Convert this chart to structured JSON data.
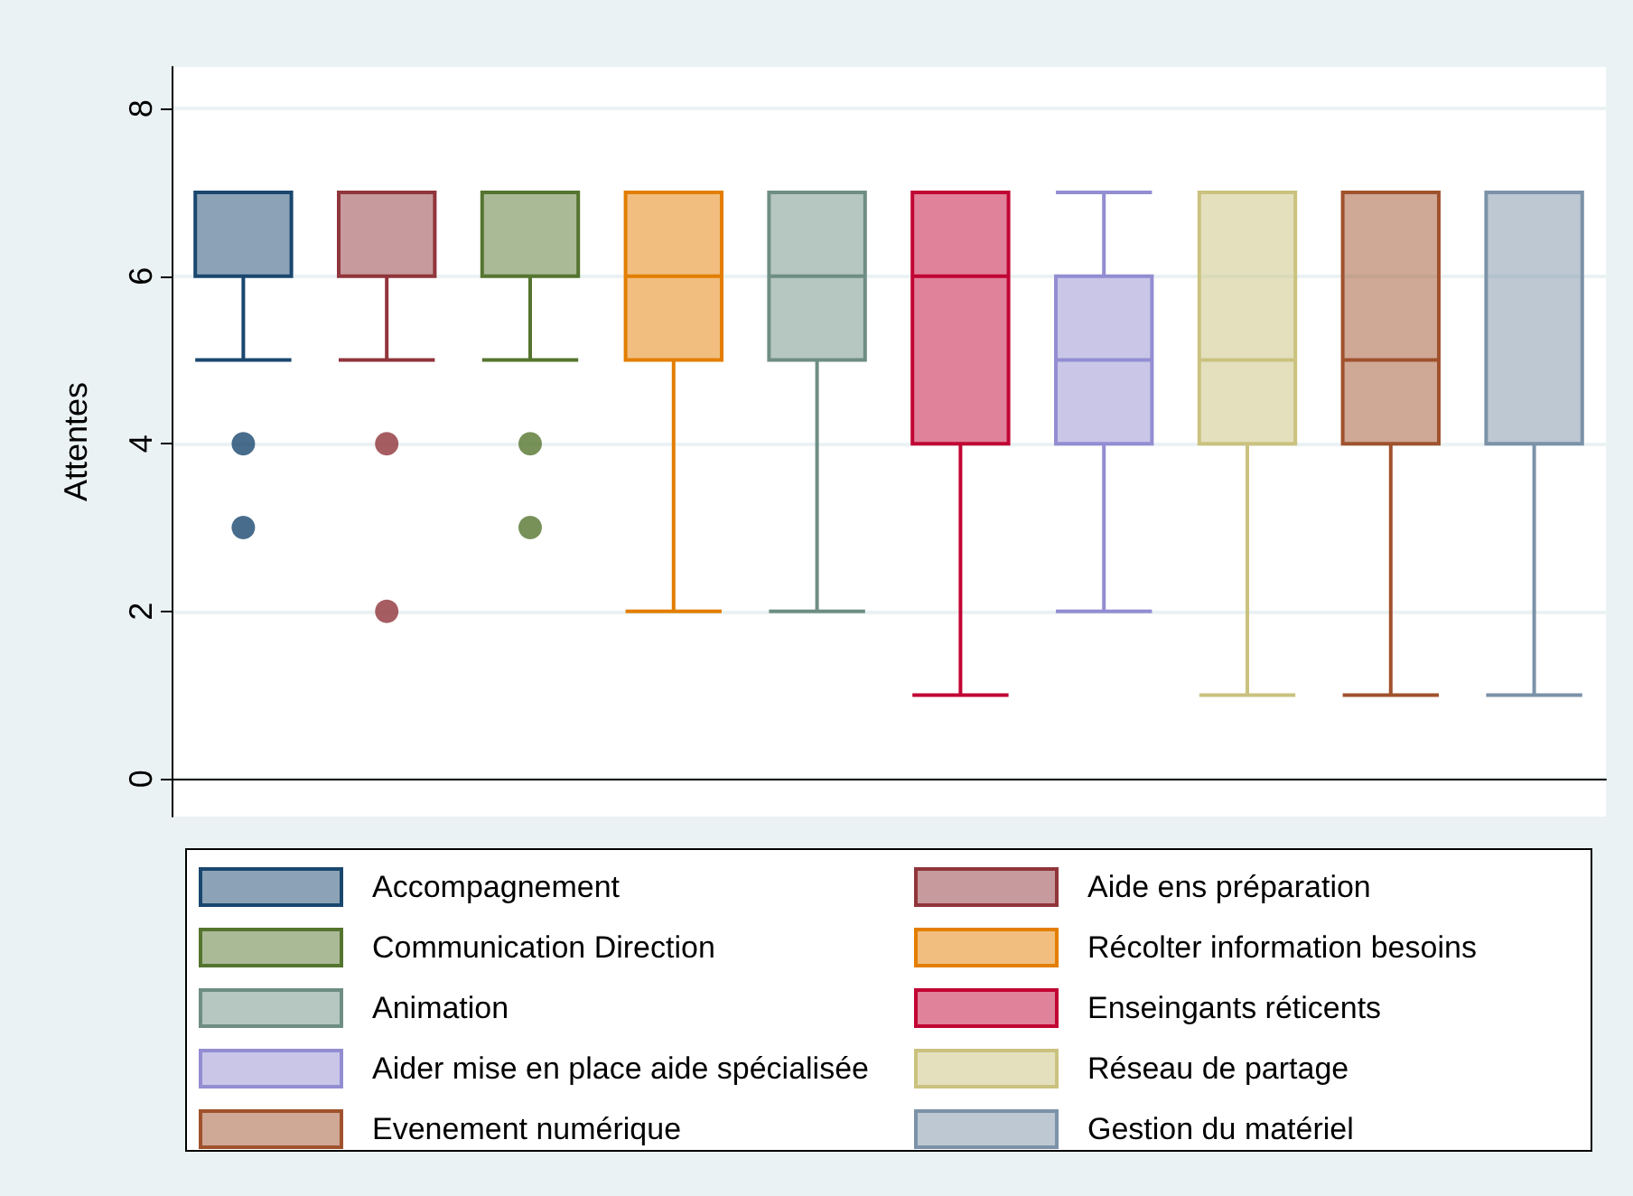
{
  "chart_data": {
    "type": "box",
    "ylabel": "Attentes",
    "categories": [
      null,
      null,
      null,
      null,
      null,
      null,
      null,
      null,
      null,
      null
    ],
    "ylim": [
      -0.45,
      8.5
    ],
    "yticks": [
      0,
      2,
      4,
      6,
      8
    ],
    "grid": "y",
    "legend": "bottom",
    "marker": "circle",
    "series": [
      {
        "name": "Accompagnement",
        "color": "#1a476f",
        "boxes": [
          {
            "low": 5,
            "q1": 6,
            "median": 7,
            "q3": 7,
            "high": 7,
            "outliers": [
              4,
              3
            ]
          },
          null,
          null,
          null,
          null,
          null,
          null,
          null,
          null,
          null
        ]
      },
      {
        "name": "Aide ens préparation",
        "color": "#90353b",
        "boxes": [
          null,
          {
            "low": 5,
            "q1": 6,
            "median": 7,
            "q3": 7,
            "high": 7,
            "outliers": [
              4,
              2
            ]
          },
          null,
          null,
          null,
          null,
          null,
          null,
          null,
          null
        ]
      },
      {
        "name": "Communication Direction",
        "color": "#55752f",
        "boxes": [
          null,
          null,
          {
            "low": 5,
            "q1": 6,
            "median": 7,
            "q3": 7,
            "high": 7,
            "outliers": [
              4,
              3
            ]
          },
          null,
          null,
          null,
          null,
          null,
          null,
          null
        ]
      },
      {
        "name": "Récolter information besoins",
        "color": "#e37e00",
        "boxes": [
          null,
          null,
          null,
          {
            "low": 2,
            "q1": 5,
            "median": 6,
            "q3": 7,
            "high": 7
          },
          null,
          null,
          null,
          null,
          null,
          null
        ]
      },
      {
        "name": "Animation",
        "color": "#6e8e84",
        "boxes": [
          null,
          null,
          null,
          null,
          {
            "low": 2,
            "q1": 5,
            "median": 6,
            "q3": 7,
            "high": 7
          },
          null,
          null,
          null,
          null,
          null
        ]
      },
      {
        "name": "Enseingants réticents",
        "color": "#c10534",
        "boxes": [
          null,
          null,
          null,
          null,
          null,
          {
            "low": 1,
            "q1": 4,
            "median": 6,
            "q3": 7,
            "high": 7
          },
          null,
          null,
          null,
          null
        ]
      },
      {
        "name": "Aider mise en place aide spécialisée",
        "color": "#938dd2",
        "boxes": [
          null,
          null,
          null,
          null,
          null,
          null,
          {
            "low": 2,
            "q1": 4,
            "median": 5,
            "q3": 6,
            "high": 7
          },
          null,
          null,
          null
        ]
      },
      {
        "name": "Réseau de partage",
        "color": "#cac27e",
        "boxes": [
          null,
          null,
          null,
          null,
          null,
          null,
          null,
          {
            "low": 1,
            "q1": 4,
            "median": 5,
            "q3": 7,
            "high": 7
          },
          null,
          null
        ]
      },
      {
        "name": "Evenement numérique",
        "color": "#a0522d",
        "boxes": [
          null,
          null,
          null,
          null,
          null,
          null,
          null,
          null,
          {
            "low": 1,
            "q1": 4,
            "median": 5,
            "q3": 7,
            "high": 7
          },
          null
        ]
      },
      {
        "name": "Gestion du matériel",
        "color": "#7b92a8",
        "boxes": [
          null,
          null,
          null,
          null,
          null,
          null,
          null,
          null,
          null,
          {
            "low": 1,
            "q1": 4,
            "median": 4,
            "q3": 7,
            "high": 7
          }
        ]
      }
    ]
  }
}
